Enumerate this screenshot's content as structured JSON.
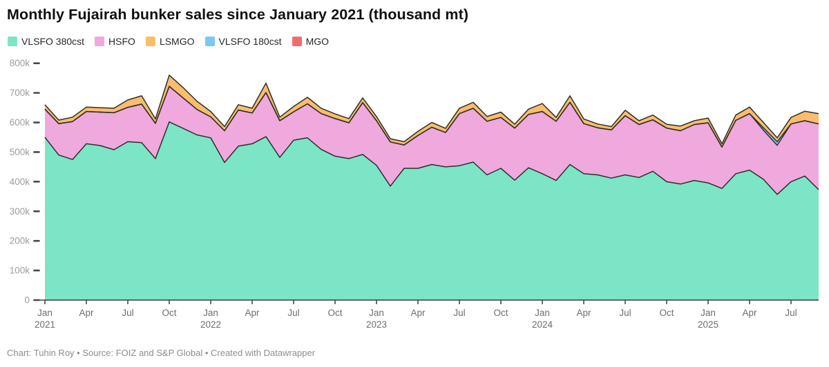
{
  "title": "Monthly Fujairah bunker sales since January 2021 (thousand mt)",
  "footer": "Chart: Tuhin Roy • Source: FOIZ and S&P Global • Created with Datawrapper",
  "colors": {
    "background": "#ffffff",
    "area_outline": "#2d2d2d",
    "axis_line": "#1a1a1a",
    "tick_mark": "#474747",
    "y_label": "#9c9c9c",
    "x_label": "#6d6d6d",
    "title_text": "#101010",
    "footer_text": "#8d8d8d"
  },
  "chart_data": {
    "type": "area",
    "stacked": true,
    "title": "Monthly Fujairah bunker sales since January 2021 (thousand mt)",
    "unit": "thousand mt",
    "x_start": "2021-01",
    "x_end": "2025-09",
    "x_step": "1 month",
    "ylim": [
      0,
      800
    ],
    "grid": "off",
    "legend_position": "top-left",
    "series": [
      {
        "name": "VLSFO 380cst",
        "color": "#7CE5C5",
        "values": [
          550,
          490,
          475,
          528,
          522,
          508,
          535,
          532,
          478,
          602,
          580,
          558,
          548,
          465,
          520,
          528,
          552,
          482,
          540,
          548,
          509,
          486,
          478,
          492,
          455,
          385,
          445,
          445,
          458,
          450,
          454,
          466,
          423,
          445,
          405,
          447,
          427,
          404,
          458,
          427,
          423,
          412,
          423,
          414,
          435,
          400,
          392,
          404,
          396,
          377,
          427,
          439,
          408,
          357,
          400,
          419,
          373
        ]
      },
      {
        "name": "HSFO",
        "color": "#EFA9DC",
        "values": [
          95,
          106,
          128,
          109,
          113,
          125,
          116,
          130,
          119,
          120,
          103,
          86,
          71,
          107,
          122,
          104,
          149,
          124,
          96,
          115,
          121,
          127,
          121,
          175,
          151,
          149,
          79,
          111,
          126,
          116,
          176,
          182,
          181,
          172,
          176,
          180,
          210,
          200,
          210,
          169,
          159,
          163,
          200,
          179,
          174,
          181,
          180,
          189,
          203,
          140,
          180,
          191,
          166,
          166,
          195,
          187,
          222
        ]
      },
      {
        "name": "LSMGO",
        "color": "#F9BD6B",
        "values": [
          15,
          12,
          15,
          15,
          15,
          15,
          25,
          28,
          15,
          38,
          35,
          28,
          18,
          14,
          18,
          16,
          32,
          12,
          18,
          22,
          18,
          16,
          14,
          16,
          14,
          11,
          11,
          14,
          16,
          14,
          18,
          20,
          16,
          18,
          13,
          18,
          27,
          13,
          22,
          16,
          13,
          11,
          18,
          13,
          16,
          13,
          16,
          13,
          16,
          11,
          18,
          22,
          18,
          13,
          22,
          32,
          35
        ]
      },
      {
        "name": "VLSFO 180cst",
        "color": "#7BC8F2",
        "values": [
          0,
          0,
          0,
          0,
          0,
          0,
          0,
          0,
          0,
          0,
          0,
          0,
          0,
          0,
          0,
          0,
          0,
          0,
          0,
          0,
          0,
          0,
          0,
          0,
          0,
          0,
          0,
          0,
          0,
          0,
          0,
          0,
          0,
          0,
          0,
          0,
          0,
          0,
          0,
          0,
          0,
          0,
          0,
          0,
          0,
          0,
          0,
          0,
          0,
          0,
          0,
          0,
          8,
          12,
          0,
          0,
          0
        ]
      },
      {
        "name": "MGO",
        "color": "#F36C6C",
        "values": [
          0,
          0,
          0,
          0,
          0,
          0,
          0,
          0,
          0,
          0,
          0,
          0,
          0,
          0,
          0,
          0,
          0,
          0,
          0,
          0,
          0,
          0,
          0,
          0,
          0,
          0,
          0,
          0,
          0,
          0,
          0,
          0,
          0,
          0,
          0,
          0,
          0,
          0,
          0,
          0,
          0,
          0,
          0,
          0,
          0,
          0,
          0,
          0,
          0,
          0,
          0,
          0,
          0,
          0,
          0,
          0,
          0
        ]
      }
    ],
    "stack_order": [
      "VLSFO 380cst",
      "HSFO",
      "VLSFO 180cst",
      "LSMGO",
      "MGO"
    ],
    "y_ticks": [
      {
        "v": 0,
        "label": "0"
      },
      {
        "v": 100,
        "label": "100k"
      },
      {
        "v": 200,
        "label": "200k"
      },
      {
        "v": 300,
        "label": "300k"
      },
      {
        "v": 400,
        "label": "400k"
      },
      {
        "v": 500,
        "label": "500k"
      },
      {
        "v": 600,
        "label": "600k"
      },
      {
        "v": 700,
        "label": "700k"
      },
      {
        "v": 800,
        "label": "800k"
      }
    ],
    "x_ticks": [
      {
        "i": 0,
        "label": "Jan",
        "year": "2021"
      },
      {
        "i": 3,
        "label": "Apr"
      },
      {
        "i": 6,
        "label": "Jul"
      },
      {
        "i": 9,
        "label": "Oct"
      },
      {
        "i": 12,
        "label": "Jan",
        "year": "2022"
      },
      {
        "i": 15,
        "label": "Apr"
      },
      {
        "i": 18,
        "label": "Jul"
      },
      {
        "i": 21,
        "label": "Oct"
      },
      {
        "i": 24,
        "label": "Jan",
        "year": "2023"
      },
      {
        "i": 27,
        "label": "Apr"
      },
      {
        "i": 30,
        "label": "Jul"
      },
      {
        "i": 33,
        "label": "Oct"
      },
      {
        "i": 36,
        "label": "Jan",
        "year": "2024"
      },
      {
        "i": 39,
        "label": "Apr"
      },
      {
        "i": 42,
        "label": "Jul"
      },
      {
        "i": 45,
        "label": "Oct"
      },
      {
        "i": 48,
        "label": "Jan",
        "year": "2025"
      },
      {
        "i": 51,
        "label": "Apr"
      },
      {
        "i": 54,
        "label": "Jul"
      }
    ]
  }
}
